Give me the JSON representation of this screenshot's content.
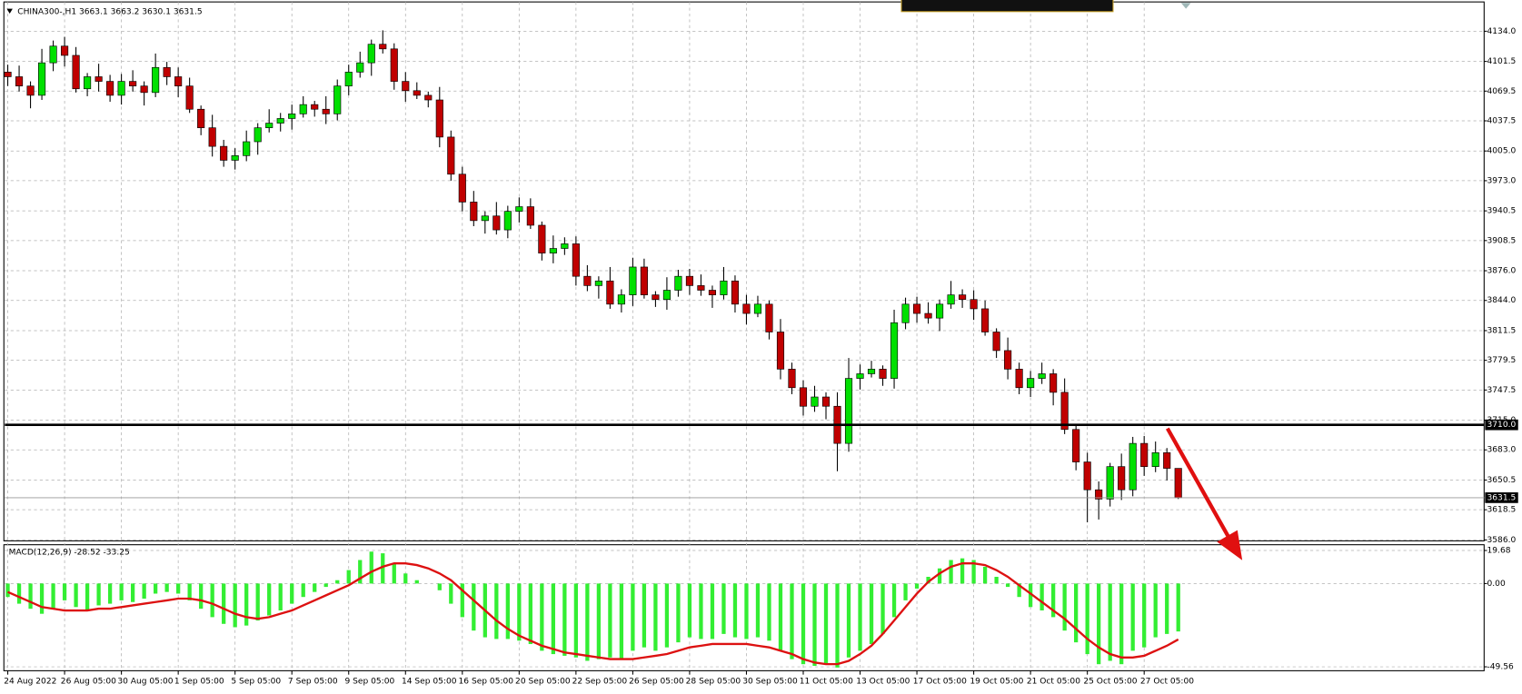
{
  "chart_data": [
    {
      "type": "candlestick",
      "title": "CHINA300-,H1  3663.1 3663.2 3630.1 3631.5",
      "categories": [
        "24 Aug 2022",
        null,
        null,
        null,
        null,
        "26 Aug 05:00",
        null,
        null,
        null,
        null,
        "30 Aug 05:00",
        null,
        null,
        null,
        null,
        "1 Sep 05:00",
        null,
        null,
        null,
        null,
        "5 Sep 05:00",
        null,
        null,
        null,
        null,
        "7 Sep 05:00",
        null,
        null,
        null,
        null,
        "9 Sep 05:00",
        null,
        null,
        null,
        null,
        "14 Sep 05:00",
        null,
        null,
        null,
        null,
        "16 Sep 05:00",
        null,
        null,
        null,
        null,
        "20 Sep 05:00",
        null,
        null,
        null,
        null,
        "22 Sep 05:00",
        null,
        null,
        null,
        null,
        "26 Sep 05:00",
        null,
        null,
        null,
        null,
        "28 Sep 05:00",
        null,
        null,
        null,
        null,
        "30 Sep 05:00",
        null,
        null,
        null,
        null,
        "11 Oct 05:00",
        null,
        null,
        null,
        null,
        "13 Oct 05:00",
        null,
        null,
        null,
        null,
        "17 Oct 05:00",
        null,
        null,
        null,
        null,
        "19 Oct 05:00",
        null,
        null,
        null,
        null,
        "21 Oct 05:00",
        null,
        null,
        null,
        null,
        "25 Oct 05:00",
        null,
        null,
        null,
        null,
        "27 Oct 05:00",
        null,
        null,
        null
      ],
      "open": [
        4090,
        4085,
        4075,
        4065,
        4100,
        4118,
        4108,
        4072,
        4085,
        4080,
        4065,
        4080,
        4075,
        4068,
        4095,
        4085,
        4075,
        4050,
        4030,
        4010,
        3995,
        4000,
        4015,
        4030,
        4035,
        4040,
        4045,
        4055,
        4050,
        4045,
        4075,
        4090,
        4100,
        4120,
        4115,
        4080,
        4070,
        4065,
        4060,
        4020,
        3980,
        3950,
        3930,
        3935,
        3920,
        3940,
        3945,
        3925,
        3895,
        3900,
        3905,
        3870,
        3860,
        3865,
        3840,
        3850,
        3880,
        3850,
        3845,
        3855,
        3870,
        3860,
        3855,
        3850,
        3865,
        3840,
        3830,
        3840,
        3810,
        3770,
        3750,
        3730,
        3740,
        3730,
        3690,
        3760,
        3765,
        3770,
        3760,
        3820,
        3840,
        3830,
        3825,
        3840,
        3850,
        3845,
        3835,
        3810,
        3790,
        3770,
        3750,
        3760,
        3765,
        3745,
        3705,
        3670,
        3640,
        3630,
        3665,
        3640,
        3690,
        3665,
        3680,
        3663.1
      ],
      "high": [
        4098,
        4097,
        4080,
        4115,
        4124,
        4128,
        4117,
        4089,
        4099,
        4087,
        4088,
        4092,
        4080,
        4110,
        4101,
        4095,
        4084,
        4054,
        4044,
        4017,
        4008,
        4027,
        4035,
        4050,
        4046,
        4055,
        4064,
        4059,
        4064,
        4082,
        4098,
        4112,
        4125,
        4135,
        4121,
        4090,
        4079,
        4069,
        4074,
        4027,
        3988,
        3962,
        3940,
        3950,
        3946,
        3955,
        3954,
        3929,
        3914,
        3912,
        3913,
        3882,
        3870,
        3880,
        3856,
        3890,
        3889,
        3854,
        3869,
        3877,
        3878,
        3872,
        3860,
        3880,
        3871,
        3850,
        3849,
        3844,
        3824,
        3777,
        3758,
        3752,
        3745,
        3745,
        3782,
        3775,
        3779,
        3774,
        3834,
        3847,
        3848,
        3842,
        3845,
        3865,
        3856,
        3855,
        3844,
        3814,
        3804,
        3777,
        3768,
        3777,
        3770,
        3760,
        3711,
        3680,
        3649,
        3669,
        3679,
        3697,
        3698,
        3692,
        3685,
        3663.2
      ],
      "low": [
        4075,
        4069,
        4051,
        4060,
        4091,
        4096,
        4068,
        4064,
        4069,
        4058,
        4055,
        4069,
        4054,
        4063,
        4076,
        4063,
        4046,
        4022,
        3999,
        3988,
        3985,
        3994,
        4001,
        4025,
        4026,
        4028,
        4041,
        4042,
        4034,
        4038,
        4065,
        4084,
        4086,
        4110,
        4071,
        4058,
        4061,
        4052,
        4009,
        3973,
        3940,
        3924,
        3916,
        3915,
        3911,
        3928,
        3921,
        3887,
        3884,
        3893,
        3860,
        3854,
        3846,
        3835,
        3831,
        3838,
        3846,
        3837,
        3834,
        3848,
        3850,
        3849,
        3836,
        3845,
        3831,
        3818,
        3826,
        3802,
        3759,
        3743,
        3720,
        3724,
        3716,
        3660,
        3681,
        3748,
        3761,
        3752,
        3749,
        3813,
        3820,
        3819,
        3811,
        3835,
        3836,
        3823,
        3806,
        3782,
        3759,
        3743,
        3740,
        3754,
        3731,
        3700,
        3661,
        3605,
        3608,
        3622,
        3629,
        3633,
        3655,
        3659,
        3650,
        3630.1
      ],
      "close": [
        4085,
        4075,
        4065,
        4100,
        4118,
        4108,
        4072,
        4085,
        4080,
        4065,
        4080,
        4075,
        4068,
        4095,
        4085,
        4075,
        4050,
        4030,
        4010,
        3995,
        4000,
        4015,
        4030,
        4035,
        4040,
        4045,
        4055,
        4050,
        4045,
        4075,
        4090,
        4100,
        4120,
        4115,
        4080,
        4070,
        4065,
        4060,
        4020,
        3980,
        3950,
        3930,
        3935,
        3920,
        3940,
        3945,
        3925,
        3895,
        3900,
        3905,
        3870,
        3860,
        3865,
        3840,
        3850,
        3880,
        3850,
        3845,
        3855,
        3870,
        3860,
        3855,
        3850,
        3865,
        3840,
        3830,
        3840,
        3810,
        3770,
        3750,
        3730,
        3740,
        3730,
        3690,
        3760,
        3765,
        3770,
        3760,
        3820,
        3840,
        3830,
        3825,
        3840,
        3850,
        3845,
        3835,
        3810,
        3790,
        3770,
        3750,
        3760,
        3765,
        3745,
        3705,
        3670,
        3640,
        3630,
        3665,
        3640,
        3690,
        3665,
        3680,
        3663.1,
        3631.5
      ],
      "up_color": "#00e000",
      "down_color": "#c00000",
      "ylim": [
        3585,
        4152
      ],
      "yticks": [
        {
          "value": 3586,
          "label": "3586.0"
        },
        3618.5,
        3650.5,
        {
          "value": 3683,
          "label": "3683.0"
        },
        {
          "value": 3715,
          "label": "3715.0"
        },
        3747.5,
        3779.5,
        3811.5,
        {
          "value": 3844,
          "label": "3844.0"
        },
        {
          "value": 3876,
          "label": "3876.0"
        },
        3908.5,
        3940.5,
        {
          "value": 3973,
          "label": "3973.0"
        },
        {
          "value": 4005,
          "label": "4005.0"
        },
        4037.5,
        4069.5,
        4101.5,
        {
          "value": 4134,
          "label": "4134.0"
        }
      ],
      "levels": [
        {
          "value": 3710,
          "label": "3710.0"
        }
      ],
      "current_price": 3631.5,
      "grid": true
    },
    {
      "type": "macd",
      "title": "MACD(12,26,9) -28.52 -33.25",
      "histogram": [
        -8,
        -12,
        -15,
        -18,
        -15,
        -10,
        -14,
        -16,
        -13,
        -12,
        -10,
        -11,
        -9,
        -6,
        -5,
        -6,
        -10,
        -15,
        -20,
        -24,
        -26,
        -25,
        -22,
        -19,
        -16,
        -12,
        -8,
        -5,
        -2,
        2,
        8,
        14,
        19,
        18,
        12,
        6,
        2,
        0,
        -4,
        -12,
        -20,
        -28,
        -32,
        -33,
        -33,
        -34,
        -36,
        -40,
        -42,
        -43,
        -44,
        -46,
        -45,
        -44,
        -45,
        -40,
        -38,
        -40,
        -38,
        -35,
        -32,
        -33,
        -33,
        -30,
        -32,
        -33,
        -32,
        -34,
        -40,
        -45,
        -48,
        -49,
        -48,
        -50,
        -44,
        -40,
        -36,
        -30,
        -20,
        -10,
        -3,
        4,
        9,
        14,
        15,
        14,
        10,
        4,
        -2,
        -8,
        -14,
        -16,
        -20,
        -28,
        -35,
        -42,
        -48,
        -46,
        -48,
        -40,
        -38,
        -32,
        -30,
        -28.52
      ],
      "signal": [
        -5,
        -8,
        -11,
        -14,
        -15,
        -16,
        -16,
        -16,
        -15,
        -15,
        -14,
        -13,
        -12,
        -11,
        -10,
        -9,
        -9,
        -10,
        -12,
        -15,
        -18,
        -20,
        -21,
        -20,
        -18,
        -16,
        -13,
        -10,
        -7,
        -4,
        -1,
        3,
        7,
        10,
        12,
        12,
        11,
        9,
        6,
        2,
        -4,
        -10,
        -16,
        -22,
        -27,
        -31,
        -34,
        -37,
        -39,
        -41,
        -42,
        -43,
        -44,
        -45,
        -45,
        -45,
        -44,
        -43,
        -42,
        -40,
        -38,
        -37,
        -36,
        -36,
        -36,
        -36,
        -37,
        -38,
        -40,
        -42,
        -45,
        -47,
        -48,
        -48,
        -46,
        -42,
        -37,
        -30,
        -22,
        -14,
        -6,
        1,
        6,
        10,
        12,
        12,
        11,
        8,
        4,
        -1,
        -6,
        -11,
        -16,
        -21,
        -27,
        -33,
        -38,
        -42,
        -44,
        -44,
        -43,
        -40,
        -37,
        -33.25
      ],
      "histogram_color": "#33ee33",
      "signal_color": "#dd1111",
      "ylim": [
        -51.9,
        23.1
      ],
      "yticks": [
        -49.56,
        {
          "value": 0,
          "label": "0.00"
        },
        19.68
      ],
      "grid": true
    }
  ]
}
